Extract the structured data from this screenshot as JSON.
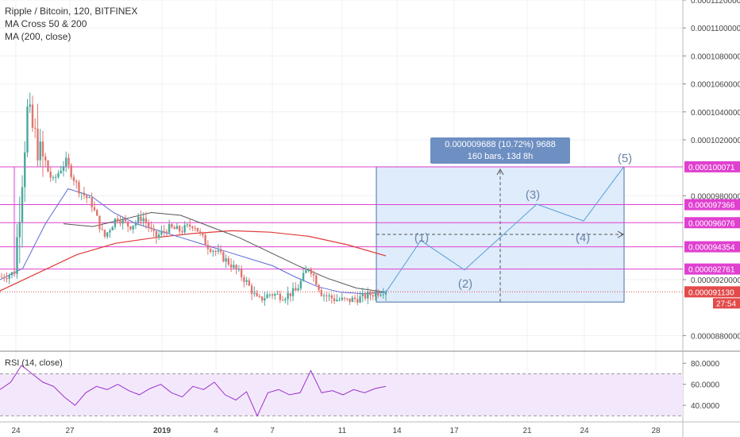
{
  "legend": {
    "line1": "Ripple / Bitcoin, 120, BITFINEX",
    "line2": "MA Cross 50 & 200",
    "line3": "MA (200, close)"
  },
  "rsi_title": "RSI (14, close)",
  "tooltip": {
    "line1": "0.000009688 (10.72%) 9688",
    "line2": "160 bars, 13d 8h"
  },
  "colors": {
    "price_up": "#4aa89c",
    "price_down": "#e0766f",
    "ma_blue": "#5c6bd6",
    "ma_gray": "#555555",
    "ma_red": "#e03a3a",
    "rsi": "#9b31c9",
    "level_line": "#e040d0",
    "projection_fill": "#dbeafb",
    "tag_magenta": "#e040d0",
    "tag_red": "#e34a4a"
  },
  "chart_data": {
    "type": "candlestick",
    "symbol": "Ripple / Bitcoin",
    "interval": "120",
    "exchange": "BITFINEX",
    "y_ticks": [
      "0.0001120000",
      "0.0001100000",
      "0.0001080000",
      "0.0001060000",
      "0.0001040000",
      "0.0001020000",
      "0.0000980000",
      "0.0000920000",
      "0.0000880000"
    ],
    "ylim": [
      8.7e-05,
      0.000112
    ],
    "x_ticks": [
      "24",
      "27",
      "2019",
      "4",
      "7",
      "11",
      "14",
      "17",
      "21",
      "24",
      "28"
    ],
    "price_levels": [
      {
        "label": "0.000100071",
        "value": 0.000100071
      },
      {
        "label": "0.000097366",
        "value": 9.7366e-05
      },
      {
        "label": "0.000096076",
        "value": 9.6076e-05
      },
      {
        "label": "0.000094354",
        "value": 9.4354e-05
      },
      {
        "label": "0.000092761",
        "value": 9.2761e-05
      }
    ],
    "current_price": {
      "label": "0.000091130",
      "value": 9.113e-05
    },
    "countdown": "27:54",
    "projection": {
      "top": 0.000100071,
      "bottom": 9.04e-05,
      "measure": "0.000009688 (10.72%) 9688",
      "bars": "160 bars, 13d 8h"
    },
    "wave_labels": [
      "(1)",
      "(2)",
      "(3)",
      "(4)",
      "(5)"
    ],
    "wave_path": [
      9.11e-05,
      9.48e-05,
      9.27e-05,
      9.74e-05,
      9.62e-05,
      0.0001001
    ],
    "price_path": [
      9.22e-05,
      9.25e-05,
      0.000104,
      0.000101,
      9.9e-05,
      0.0001005,
      9.85e-05,
      9.75e-05,
      9.5e-05,
      9.65e-05,
      9.58e-05,
      9.65e-05,
      9.5e-05,
      9.57e-05,
      9.55e-05,
      9.6e-05,
      9.45e-05,
      9.38e-05,
      9.3e-05,
      9.2e-05,
      9.05e-05,
      9.1e-05,
      9.08e-05,
      9.12e-05,
      9.3e-05,
      9.1e-05,
      9.06e-05,
      9.05e-05,
      9.07e-05,
      9.1e-05,
      9.13e-05
    ],
    "ma_blue_path": [
      9.2e-05,
      9.28e-05,
      9.6e-05,
      9.85e-05,
      9.8e-05,
      9.68e-05,
      9.6e-05,
      9.55e-05,
      9.5e-05,
      9.45e-05,
      9.4e-05,
      9.35e-05,
      9.3e-05,
      9.22e-05,
      9.15e-05,
      9.11e-05,
      9.1e-05,
      9.11e-05
    ],
    "ma_gray_path": [
      9.6e-05,
      9.58e-05,
      9.63e-05,
      9.68e-05,
      9.66e-05,
      9.58e-05,
      9.5e-05,
      9.4e-05,
      9.3e-05,
      9.21e-05,
      9.14e-05,
      9.11e-05
    ],
    "ma_red_path": [
      9.12e-05,
      9.25e-05,
      9.38e-05,
      9.46e-05,
      9.5e-05,
      9.53e-05,
      9.55e-05,
      9.54e-05,
      9.51e-05,
      9.45e-05,
      9.37e-05
    ],
    "rsi_ticks": [
      "80.0000",
      "60.0000",
      "40.0000"
    ],
    "rsi_ylim": [
      25,
      90
    ],
    "rsi_path": [
      55,
      62,
      78,
      70,
      62,
      58,
      48,
      40,
      52,
      58,
      55,
      60,
      54,
      50,
      56,
      60,
      52,
      48,
      58,
      55,
      62,
      50,
      45,
      53,
      30,
      52,
      55,
      50,
      52,
      73,
      52,
      54,
      50,
      55,
      52,
      56,
      58
    ]
  }
}
